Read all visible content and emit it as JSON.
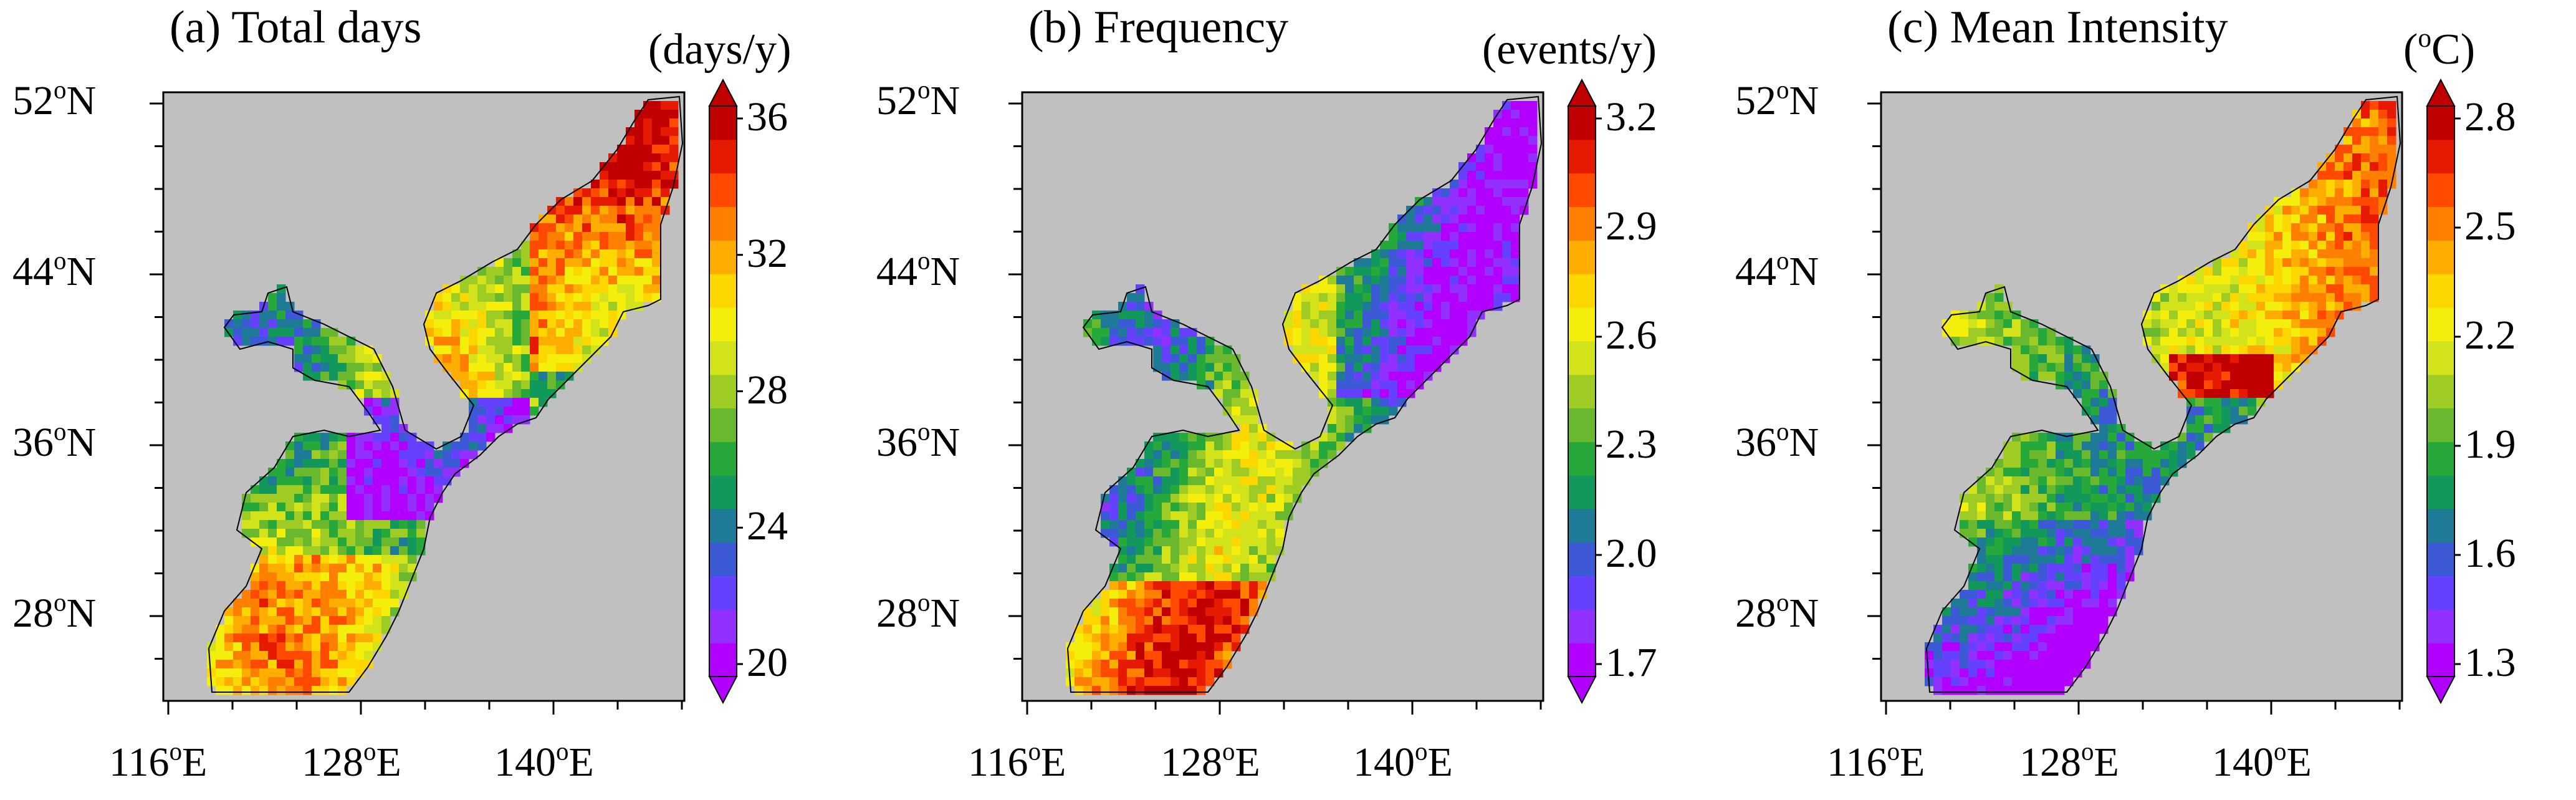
{
  "figure": {
    "land_color": "#c0c0c0",
    "lat_labels": [
      {
        "deg": "52",
        "sup": "o",
        "hemi": "N"
      },
      {
        "deg": "44",
        "sup": "o",
        "hemi": "N"
      },
      {
        "deg": "36",
        "sup": "o",
        "hemi": "N"
      },
      {
        "deg": "28",
        "sup": "o",
        "hemi": "N"
      }
    ],
    "lon_labels": [
      {
        "deg": "116",
        "sup": "o",
        "hemi": "E"
      },
      {
        "deg": "128",
        "sup": "o",
        "hemi": "E"
      },
      {
        "deg": "140",
        "sup": "o",
        "hemi": "E"
      }
    ],
    "colormap": [
      "#b200ff",
      "#9130ff",
      "#6640ff",
      "#3c5ad6",
      "#1f7a98",
      "#13985c",
      "#27a83a",
      "#6ab82e",
      "#9fcb25",
      "#d2e21b",
      "#f3ee0c",
      "#ffd700",
      "#ffae00",
      "#ff7f00",
      "#ff4a00",
      "#e51a00",
      "#c00000"
    ],
    "panels": [
      {
        "title": "(a) Total days",
        "unit": "(days/y)",
        "colorbar_ticks": [
          "36",
          "32",
          "28",
          "24",
          "20"
        ],
        "field": {
          "description_mean": 26,
          "min": 20,
          "max": 36
        }
      },
      {
        "title": "(b) Frequency",
        "unit": "(events/y)",
        "colorbar_ticks": [
          "3.2",
          "2.9",
          "2.6",
          "2.3",
          "2.0",
          "1.7"
        ],
        "field": {
          "description_mean": 2.4,
          "min": 1.7,
          "max": 3.2
        }
      },
      {
        "title": "(c) Mean Intensity",
        "unit_parts": {
          "open": "(",
          "sup": "o",
          "rest": "C)"
        },
        "colorbar_ticks": [
          "2.8",
          "2.5",
          "2.2",
          "1.9",
          "1.6",
          "1.3"
        ],
        "field": {
          "description_mean": 2.0,
          "min": 1.3,
          "max": 2.8
        }
      }
    ]
  }
}
